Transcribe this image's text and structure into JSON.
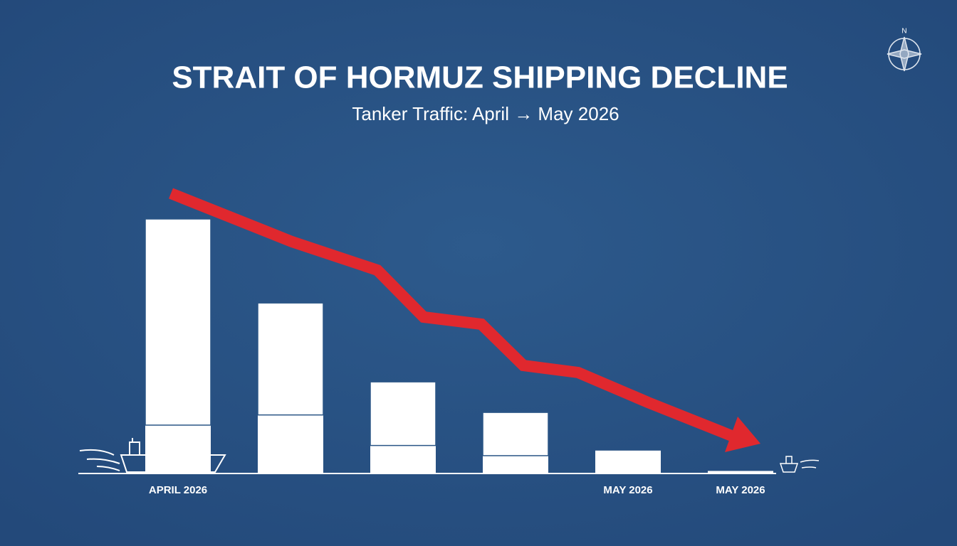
{
  "chart_data": {
    "type": "stacked_bar",
    "title": "STRAIT OF HORMUZ SHIPPING DECLINE",
    "subtitle": "Tanker Traffic: April → May 2026",
    "annotations": [
      "N"
    ],
    "categories": [
      "APRIL 2026",
      null,
      null,
      null,
      "MAY 2026",
      "MAY 2026"
    ],
    "series": [
      {
        "color": "#ffffff",
        "values": [
          19,
          23,
          11,
          7,
          9,
          1
        ]
      },
      {
        "color": "#ffffff",
        "values": [
          81,
          44,
          25,
          17,
          0,
          0
        ]
      }
    ],
    "ylim": [
      0,
      100
    ]
  }
}
